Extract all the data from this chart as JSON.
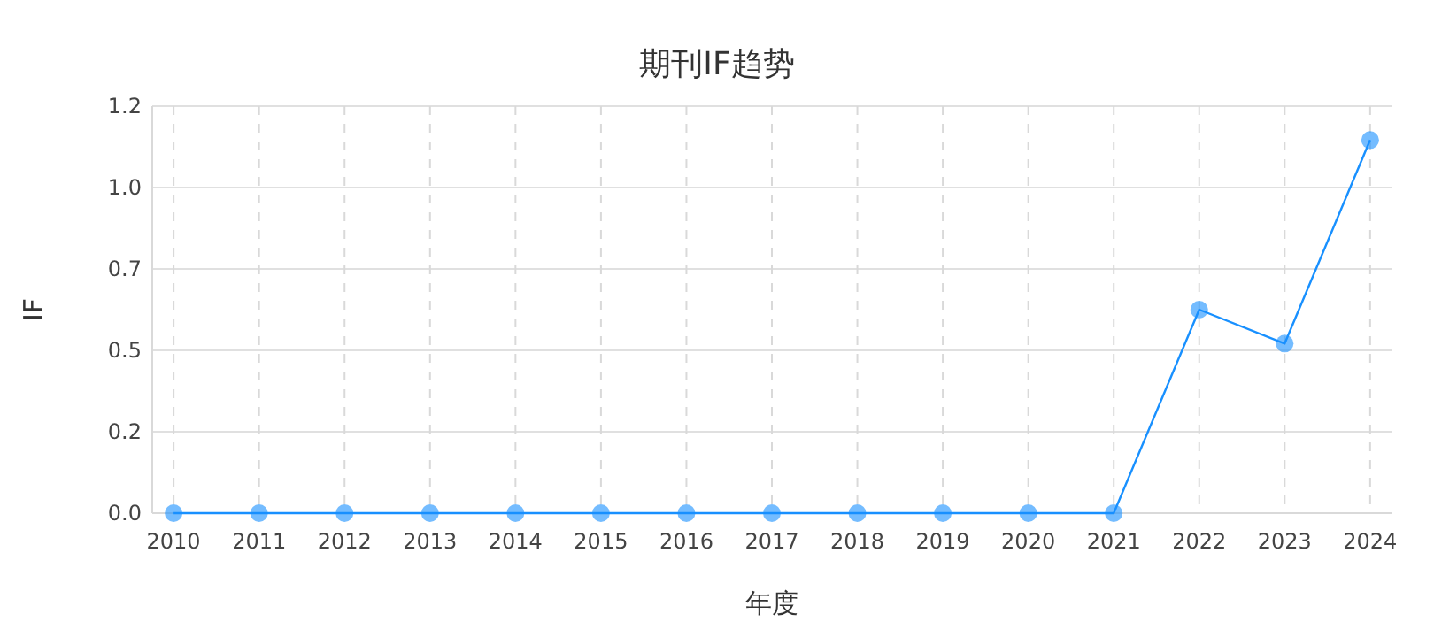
{
  "chart_data": {
    "type": "line",
    "title": "期刊IF趋势",
    "xlabel": "年度",
    "ylabel": "IF",
    "categories": [
      "2010",
      "2011",
      "2012",
      "2013",
      "2014",
      "2015",
      "2016",
      "2017",
      "2018",
      "2019",
      "2020",
      "2021",
      "2022",
      "2023",
      "2024"
    ],
    "series": [
      {
        "color": "#1890ff",
        "values": [
          0,
          0,
          0,
          0,
          0,
          0,
          0,
          0,
          0,
          0,
          0,
          0,
          0.6,
          0.5,
          1.1
        ]
      }
    ],
    "ylim": [
      0,
      1.2
    ],
    "yticks": [
      {
        "value": 0,
        "label": "0.0"
      },
      {
        "value": 0.24,
        "label": "0.2"
      },
      {
        "value": 0.48,
        "label": "0.5"
      },
      {
        "value": 0.72,
        "label": "0.7"
      },
      {
        "value": 0.96,
        "label": "1.0"
      },
      1.2
    ],
    "grid": true,
    "marker": "circle",
    "line_style": "solid"
  }
}
